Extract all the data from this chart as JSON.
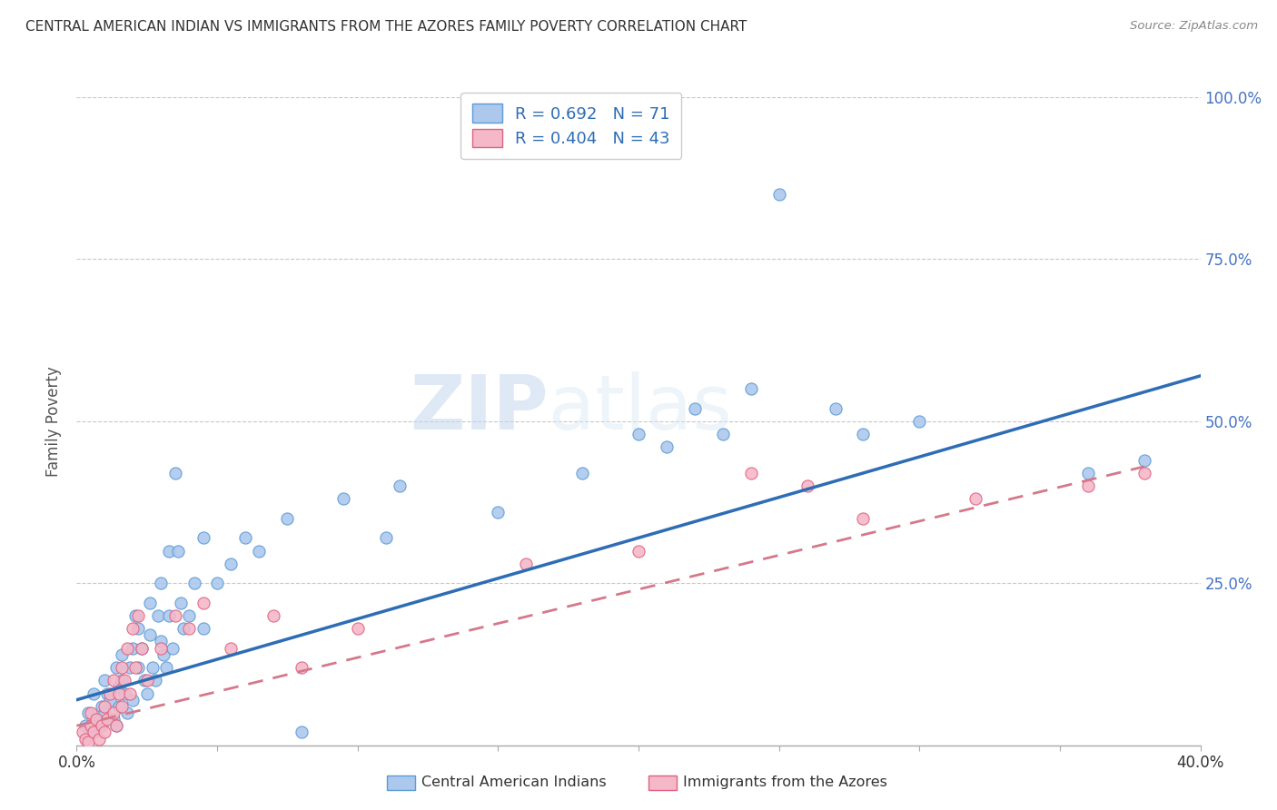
{
  "title": "CENTRAL AMERICAN INDIAN VS IMMIGRANTS FROM THE AZORES FAMILY POVERTY CORRELATION CHART",
  "source": "Source: ZipAtlas.com",
  "ylabel": "Family Poverty",
  "legend_label1": "Central American Indians",
  "legend_label2": "Immigrants from the Azores",
  "legend_r1": "R = 0.692",
  "legend_n1": "N = 71",
  "legend_r2": "R = 0.404",
  "legend_n2": "N = 43",
  "watermark_part1": "ZIP",
  "watermark_part2": "atlas",
  "blue_color": "#adc8ed",
  "blue_edge_color": "#5b9bd5",
  "pink_color": "#f4b8c8",
  "pink_edge_color": "#e06080",
  "blue_line_color": "#2e6db4",
  "pink_line_color": "#d4788a",
  "grid_color": "#c8c8c8",
  "background_color": "#ffffff",
  "text_color": "#333333",
  "right_tick_color": "#4472c4",
  "source_color": "#888888",
  "blue_scatter": [
    [
      0.3,
      3.0
    ],
    [
      0.4,
      5.0
    ],
    [
      0.5,
      2.0
    ],
    [
      0.6,
      8.0
    ],
    [
      0.7,
      4.0
    ],
    [
      0.8,
      3.0
    ],
    [
      0.9,
      6.0
    ],
    [
      1.0,
      5.0
    ],
    [
      1.0,
      10.0
    ],
    [
      1.1,
      8.0
    ],
    [
      1.2,
      7.0
    ],
    [
      1.3,
      4.0
    ],
    [
      1.4,
      3.0
    ],
    [
      1.4,
      12.0
    ],
    [
      1.5,
      9.0
    ],
    [
      1.5,
      6.0
    ],
    [
      1.6,
      14.0
    ],
    [
      1.6,
      10.0
    ],
    [
      1.7,
      8.0
    ],
    [
      1.8,
      5.0
    ],
    [
      1.9,
      12.0
    ],
    [
      2.0,
      15.0
    ],
    [
      2.0,
      7.0
    ],
    [
      2.1,
      20.0
    ],
    [
      2.2,
      18.0
    ],
    [
      2.2,
      12.0
    ],
    [
      2.3,
      15.0
    ],
    [
      2.4,
      10.0
    ],
    [
      2.5,
      8.0
    ],
    [
      2.6,
      22.0
    ],
    [
      2.6,
      17.0
    ],
    [
      2.7,
      12.0
    ],
    [
      2.8,
      10.0
    ],
    [
      2.9,
      20.0
    ],
    [
      3.0,
      16.0
    ],
    [
      3.0,
      25.0
    ],
    [
      3.1,
      14.0
    ],
    [
      3.2,
      12.0
    ],
    [
      3.3,
      30.0
    ],
    [
      3.3,
      20.0
    ],
    [
      3.4,
      15.0
    ],
    [
      3.5,
      42.0
    ],
    [
      3.6,
      30.0
    ],
    [
      3.7,
      22.0
    ],
    [
      3.8,
      18.0
    ],
    [
      4.0,
      20.0
    ],
    [
      4.2,
      25.0
    ],
    [
      4.5,
      18.0
    ],
    [
      4.5,
      32.0
    ],
    [
      5.0,
      25.0
    ],
    [
      5.5,
      28.0
    ],
    [
      6.0,
      32.0
    ],
    [
      6.5,
      30.0
    ],
    [
      7.5,
      35.0
    ],
    [
      8.0,
      2.0
    ],
    [
      9.5,
      38.0
    ],
    [
      11.0,
      32.0
    ],
    [
      11.5,
      40.0
    ],
    [
      15.0,
      36.0
    ],
    [
      18.0,
      42.0
    ],
    [
      20.0,
      48.0
    ],
    [
      21.0,
      46.0
    ],
    [
      22.0,
      52.0
    ],
    [
      23.0,
      48.0
    ],
    [
      24.0,
      55.0
    ],
    [
      25.0,
      85.0
    ],
    [
      27.0,
      52.0
    ],
    [
      28.0,
      48.0
    ],
    [
      30.0,
      50.0
    ],
    [
      36.0,
      42.0
    ],
    [
      38.0,
      44.0
    ]
  ],
  "pink_scatter": [
    [
      0.2,
      2.0
    ],
    [
      0.3,
      1.0
    ],
    [
      0.4,
      0.5
    ],
    [
      0.5,
      3.0
    ],
    [
      0.5,
      5.0
    ],
    [
      0.6,
      2.0
    ],
    [
      0.7,
      4.0
    ],
    [
      0.8,
      1.0
    ],
    [
      0.9,
      3.0
    ],
    [
      1.0,
      6.0
    ],
    [
      1.0,
      2.0
    ],
    [
      1.1,
      4.0
    ],
    [
      1.2,
      8.0
    ],
    [
      1.3,
      5.0
    ],
    [
      1.3,
      10.0
    ],
    [
      1.4,
      3.0
    ],
    [
      1.5,
      8.0
    ],
    [
      1.6,
      12.0
    ],
    [
      1.6,
      6.0
    ],
    [
      1.7,
      10.0
    ],
    [
      1.8,
      15.0
    ],
    [
      1.9,
      8.0
    ],
    [
      2.0,
      18.0
    ],
    [
      2.1,
      12.0
    ],
    [
      2.2,
      20.0
    ],
    [
      2.3,
      15.0
    ],
    [
      2.5,
      10.0
    ],
    [
      3.0,
      15.0
    ],
    [
      3.5,
      20.0
    ],
    [
      4.0,
      18.0
    ],
    [
      4.5,
      22.0
    ],
    [
      5.5,
      15.0
    ],
    [
      7.0,
      20.0
    ],
    [
      8.0,
      12.0
    ],
    [
      10.0,
      18.0
    ],
    [
      16.0,
      28.0
    ],
    [
      20.0,
      30.0
    ],
    [
      24.0,
      42.0
    ],
    [
      26.0,
      40.0
    ],
    [
      28.0,
      35.0
    ],
    [
      32.0,
      38.0
    ],
    [
      36.0,
      40.0
    ],
    [
      38.0,
      42.0
    ]
  ],
  "xlim": [
    0,
    40
  ],
  "ylim": [
    0,
    100
  ],
  "blue_fit_x": [
    0,
    40
  ],
  "blue_fit_y": [
    7,
    57
  ],
  "pink_fit_x": [
    0,
    38
  ],
  "pink_fit_y": [
    3,
    43
  ]
}
